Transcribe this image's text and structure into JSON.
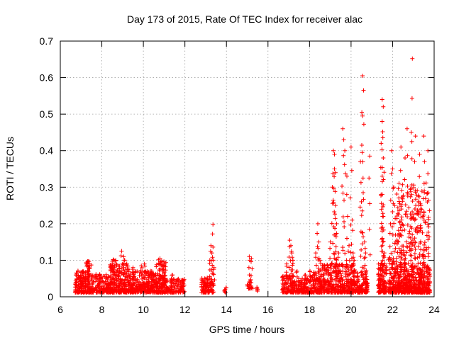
{
  "chart_data": {
    "type": "scatter",
    "title": "Day 173 of 2015, Rate Of TEC Index for receiver alac",
    "xlabel": "GPS time / hours",
    "ylabel": "ROTI / TECUs",
    "xlim": [
      6,
      24
    ],
    "ylim": [
      0,
      0.7
    ],
    "xticks": [
      6,
      8,
      10,
      12,
      14,
      16,
      18,
      20,
      22,
      24
    ],
    "yticks": [
      0,
      0.1,
      0.2,
      0.3,
      0.4,
      0.5,
      0.6,
      0.7
    ],
    "ytick_labels": [
      "0",
      "0.1",
      "0.2",
      "0.3",
      "0.4",
      "0.5",
      "0.6",
      "0.7"
    ],
    "grid": true,
    "marker": "+",
    "color": "#ff0000",
    "clusters": [
      {
        "x": [
          6.7,
          7.2
        ],
        "y": [
          0.0,
          0.06
        ],
        "n": 120,
        "spikes": [
          [
            6.75,
            0.06
          ],
          [
            7.1,
            0.07
          ],
          [
            6.9,
            0.05
          ]
        ]
      },
      {
        "x": [
          7.2,
          7.5
        ],
        "y": [
          0.0,
          0.09
        ],
        "n": 90,
        "spikes": [
          [
            7.3,
            0.09
          ],
          [
            7.4,
            0.085
          ]
        ]
      },
      {
        "x": [
          7.5,
          8.4
        ],
        "y": [
          0.0,
          0.05
        ],
        "n": 150,
        "spikes": [
          [
            7.9,
            0.06
          ],
          [
            8.2,
            0.05
          ]
        ]
      },
      {
        "x": [
          8.4,
          8.7
        ],
        "y": [
          0.0,
          0.09
        ],
        "n": 80,
        "spikes": [
          [
            8.5,
            0.09
          ],
          [
            8.6,
            0.08
          ]
        ]
      },
      {
        "x": [
          8.7,
          9.3
        ],
        "y": [
          0.0,
          0.08
        ],
        "n": 140,
        "spikes": [
          [
            8.95,
            0.125
          ],
          [
            9.05,
            0.11
          ],
          [
            9.1,
            0.1
          ]
        ]
      },
      {
        "x": [
          9.3,
          10.1
        ],
        "y": [
          0.0,
          0.06
        ],
        "n": 150,
        "spikes": [
          [
            9.5,
            0.08
          ],
          [
            9.9,
            0.085
          ],
          [
            10.05,
            0.09
          ]
        ]
      },
      {
        "x": [
          10.1,
          10.6
        ],
        "y": [
          0.0,
          0.06
        ],
        "n": 110,
        "spikes": [
          [
            10.4,
            0.07
          ]
        ]
      },
      {
        "x": [
          10.6,
          11.1
        ],
        "y": [
          0.0,
          0.09
        ],
        "n": 130,
        "spikes": [
          [
            10.8,
            0.105
          ],
          [
            10.9,
            0.095
          ],
          [
            11.0,
            0.09
          ]
        ]
      },
      {
        "x": [
          11.1,
          12.0
        ],
        "y": [
          0.0,
          0.04
        ],
        "n": 110,
        "spikes": [
          [
            11.4,
            0.06
          ],
          [
            11.9,
            0.04
          ]
        ]
      },
      {
        "x": [
          12.8,
          13.0
        ],
        "y": [
          0.0,
          0.04
        ],
        "n": 40,
        "spikes": [
          [
            12.9,
            0.04
          ]
        ]
      },
      {
        "x": [
          13.0,
          13.4
        ],
        "y": [
          0.0,
          0.04
        ],
        "n": 60,
        "spikes": [
          [
            13.25,
            0.14
          ],
          [
            13.3,
            0.12
          ],
          [
            13.2,
            0.1
          ],
          [
            13.35,
            0.198
          ],
          [
            13.4,
            0.08
          ]
        ]
      },
      {
        "x": [
          13.9,
          14.0
        ],
        "y": [
          0.01,
          0.015
        ],
        "n": 2,
        "spikes": [
          [
            13.95,
            0.012
          ]
        ]
      },
      {
        "x": [
          15.0,
          15.3
        ],
        "y": [
          0.01,
          0.03
        ],
        "n": 14,
        "spikes": [
          [
            15.1,
            0.11
          ],
          [
            15.2,
            0.105
          ],
          [
            15.15,
            0.045
          ],
          [
            15.5,
            0.02
          ]
        ]
      },
      {
        "x": [
          16.7,
          17.3
        ],
        "y": [
          0.0,
          0.05
        ],
        "n": 120,
        "spikes": [
          [
            17.05,
            0.155
          ],
          [
            17.1,
            0.14
          ],
          [
            17.15,
            0.12
          ],
          [
            16.9,
            0.09
          ],
          [
            17.2,
            0.1
          ]
        ]
      },
      {
        "x": [
          17.3,
          18.0
        ],
        "y": [
          0.0,
          0.04
        ],
        "n": 110,
        "spikes": [
          [
            17.4,
            0.07
          ],
          [
            17.8,
            0.06
          ]
        ]
      },
      {
        "x": [
          18.0,
          18.6
        ],
        "y": [
          0.0,
          0.06
        ],
        "n": 130,
        "spikes": [
          [
            18.4,
            0.2
          ],
          [
            18.45,
            0.15
          ],
          [
            18.3,
            0.12
          ],
          [
            18.5,
            0.1
          ]
        ]
      },
      {
        "x": [
          18.6,
          19.5
        ],
        "y": [
          0.0,
          0.08
        ],
        "n": 190,
        "spikes": [
          [
            19.15,
            0.4
          ],
          [
            19.2,
            0.35
          ],
          [
            19.1,
            0.3
          ],
          [
            19.25,
            0.25
          ],
          [
            19.3,
            0.2
          ],
          [
            19.0,
            0.15
          ],
          [
            19.4,
            0.12
          ],
          [
            19.2,
            0.39
          ],
          [
            19.25,
            0.34
          ]
        ]
      },
      {
        "x": [
          19.5,
          20.2
        ],
        "y": [
          0.0,
          0.08
        ],
        "n": 170,
        "spikes": [
          [
            19.6,
            0.46
          ],
          [
            19.65,
            0.43
          ],
          [
            19.7,
            0.4
          ],
          [
            19.8,
            0.33
          ],
          [
            20.0,
            0.41
          ],
          [
            20.05,
            0.21
          ],
          [
            20.1,
            0.12
          ],
          [
            19.9,
            0.14
          ],
          [
            20.15,
            0.1
          ]
        ]
      },
      {
        "x": [
          20.2,
          20.8
        ],
        "y": [
          0.0,
          0.06
        ],
        "n": 120,
        "spikes": [
          [
            20.55,
            0.605
          ],
          [
            20.6,
            0.565
          ],
          [
            20.55,
            0.495
          ],
          [
            20.45,
            0.37
          ],
          [
            20.5,
            0.26
          ],
          [
            20.65,
            0.15
          ],
          [
            20.7,
            0.12
          ],
          [
            20.9,
            0.385
          ]
        ]
      },
      {
        "x": [
          21.3,
          21.7
        ],
        "y": [
          0.0,
          0.08
        ],
        "n": 130,
        "spikes": [
          [
            21.5,
            0.54
          ],
          [
            21.55,
            0.52
          ],
          [
            21.5,
            0.48
          ],
          [
            21.45,
            0.42
          ],
          [
            21.55,
            0.38
          ],
          [
            21.5,
            0.33
          ],
          [
            21.45,
            0.28
          ],
          [
            21.55,
            0.22
          ],
          [
            21.5,
            0.18
          ],
          [
            21.6,
            0.12
          ]
        ]
      },
      {
        "x": [
          21.8,
          22.2
        ],
        "y": [
          0.0,
          0.1
        ],
        "n": 120,
        "spikes": [
          [
            21.95,
            0.4
          ],
          [
            22.0,
            0.35
          ],
          [
            22.05,
            0.3
          ],
          [
            22.1,
            0.25
          ],
          [
            21.9,
            0.2
          ],
          [
            22.15,
            0.15
          ]
        ]
      },
      {
        "x": [
          22.2,
          23.8
        ],
        "y": [
          0.0,
          0.3
        ],
        "n": 420,
        "spikes": [
          [
            22.95,
            0.652
          ],
          [
            22.7,
            0.46
          ],
          [
            22.9,
            0.45
          ],
          [
            23.1,
            0.44
          ],
          [
            23.5,
            0.44
          ],
          [
            23.7,
            0.4
          ],
          [
            22.4,
            0.41
          ],
          [
            22.6,
            0.38
          ],
          [
            23.3,
            0.39
          ]
        ]
      },
      {
        "x": [
          22.2,
          23.8
        ],
        "y": [
          0.0,
          0.08
        ],
        "n": 300,
        "spikes": []
      }
    ]
  }
}
